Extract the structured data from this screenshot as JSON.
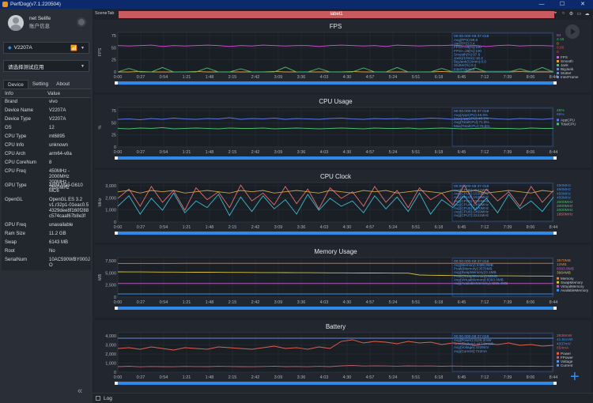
{
  "window": {
    "title": "PerfDog(v7.1.220504)",
    "controls": [
      "—",
      "☐",
      "✕"
    ]
  },
  "user": {
    "name": "net Selife",
    "account_label": "账户信息"
  },
  "device": {
    "name": "V2207A"
  },
  "app_select": {
    "placeholder": "请选择测试应用"
  },
  "tabs": [
    "Device",
    "Setting",
    "About"
  ],
  "info_table": {
    "headers": [
      "Info",
      "Value"
    ],
    "rows": [
      {
        "key": "Brand",
        "lines": [
          "vivo"
        ]
      },
      {
        "key": "Device Name",
        "lines": [
          "V2207A"
        ]
      },
      {
        "key": "Device Type",
        "lines": [
          "V2207A"
        ]
      },
      {
        "key": "OS",
        "lines": [
          "12"
        ]
      },
      {
        "key": "CPU Type",
        "lines": [
          "mt6895"
        ]
      },
      {
        "key": "CPU Info",
        "lines": [
          "unknown"
        ]
      },
      {
        "key": "CPU Arch",
        "lines": [
          "arm64-v8a"
        ]
      },
      {
        "key": "CPU CoreNum",
        "lines": [
          "8"
        ]
      },
      {
        "key": "CPU Freq",
        "lines": [
          "450MHz - 2000MHz",
          "200MHz - 2850MHz"
        ]
      },
      {
        "key": "GPU Type",
        "lines": [
          "ARM Mali-G610",
          "MC6"
        ]
      },
      {
        "key": "OpenGL",
        "lines": [
          "OpenGL ES 3.2",
          "v1.r32p1-01eac0.5",
          "4329dee8f160f288",
          "c574caaf67b8e3f"
        ]
      },
      {
        "key": "GPU Freq",
        "lines": [
          "unavailable"
        ]
      },
      {
        "key": "Ram Size",
        "lines": [
          "11.2 GB"
        ]
      },
      {
        "key": "Swap",
        "lines": [
          "6143 MB"
        ]
      },
      {
        "key": "Root",
        "lines": [
          "No"
        ]
      },
      {
        "key": "SerialNum",
        "lines": [
          "10AC590WBY000J",
          "O"
        ]
      }
    ]
  },
  "scene": {
    "tab_label": "SceneTab",
    "label": "label1"
  },
  "log": {
    "label": "Log"
  },
  "colors": {
    "accent": "#3a8ee6",
    "label_bar": "#c95a60",
    "fps": "#e052e0",
    "cpu_total": "#5a78e8",
    "cpu_app": "#48c070"
  },
  "time_ticks": [
    "0:00",
    "0:27",
    "0:54",
    "1:21",
    "1:48",
    "2:15",
    "2:42",
    "3:09",
    "3:36",
    "4:03",
    "4:30",
    "4:57",
    "5:24",
    "5:51",
    "6:18",
    "6:45",
    "7:12",
    "7:39",
    "8:06",
    "8:44"
  ],
  "chart_data": [
    {
      "type": "line",
      "title": "FPS",
      "ylabel": "FPS",
      "ylim": [
        0,
        90
      ],
      "yticks": [
        "75",
        "50",
        "25",
        "0"
      ],
      "series": [
        {
          "name": "FPS",
          "color": "#e052e0",
          "values": [
            60,
            59,
            60,
            61,
            58,
            60,
            59,
            60,
            61,
            60,
            58,
            60,
            59,
            61,
            60,
            59,
            60,
            60,
            58,
            60,
            61,
            60,
            59,
            60,
            58,
            61,
            60,
            59,
            60,
            60,
            61,
            59,
            60,
            58,
            60,
            61,
            59,
            60,
            60,
            59
          ]
        },
        {
          "name": "Jank",
          "color": "#e0a040",
          "values": [
            0,
            0,
            1,
            0,
            0,
            0,
            0,
            1,
            0,
            0,
            0,
            0,
            0,
            0,
            1,
            0,
            0,
            0,
            0,
            0,
            0,
            1,
            0,
            0,
            0,
            0,
            0,
            0,
            0,
            1,
            0,
            0,
            0,
            0,
            0,
            0,
            1,
            0,
            0,
            0
          ]
        },
        {
          "name": "Stutter",
          "color": "#48c070",
          "values": [
            0,
            8,
            0,
            0,
            10,
            0,
            0,
            0,
            9,
            0,
            0,
            7,
            0,
            0,
            0,
            11,
            0,
            0,
            8,
            0,
            0,
            0,
            9,
            0,
            0,
            10,
            0,
            0,
            0,
            8,
            0,
            0,
            9,
            0,
            0,
            0,
            7,
            0,
            10,
            0
          ]
        }
      ],
      "legend": [
        "FPS",
        "Smooth",
        "Jank",
        "BigJank",
        "Stutter",
        "InterFrame"
      ],
      "legend_values": [
        {
          "text": "84",
          "color": "#e052e0"
        },
        {
          "text": "2.16",
          "color": "#48c070"
        },
        {
          "text": "0",
          "color": "#e0a040"
        },
        {
          "text": "0.00",
          "color": "#e05050"
        },
        {
          "text": "0",
          "color": "#e05050"
        }
      ],
      "stats_header": "00:00.000-08:37.018",
      "stats": [
        "Avg(FPS):59.8",
        "Var(FPS):3.4",
        "FPS>=18[%]:100",
        "FPS>=25[%]:100",
        "Smooth(%):97.8",
        "Jank(/10min):16.2",
        "BigJank(/10min):0.0",
        "Stutter(%):0.2",
        "InterFrame:3"
      ]
    },
    {
      "type": "line",
      "title": "CPU Usage",
      "ylabel": "%",
      "ylim": [
        0,
        100
      ],
      "yticks": [
        "75",
        "50",
        "25",
        "0"
      ],
      "series": [
        {
          "name": "TotalCPU",
          "color": "#5a78e8",
          "values": [
            70,
            71,
            69,
            72,
            70,
            73,
            71,
            70,
            72,
            71,
            74,
            70,
            72,
            71,
            73,
            70,
            72,
            71,
            70,
            72,
            73,
            71,
            70,
            72,
            71,
            72,
            70,
            71,
            73,
            72,
            70,
            71,
            72,
            73,
            71,
            70,
            72,
            71,
            70,
            72
          ]
        },
        {
          "name": "AppCPU",
          "color": "#48c070",
          "values": [
            47,
            46,
            48,
            47,
            49,
            46,
            47,
            48,
            47,
            46,
            48,
            47,
            47,
            48,
            46,
            47,
            48,
            47,
            46,
            47,
            48,
            47,
            46,
            48,
            47,
            47,
            48,
            46,
            47,
            48,
            47,
            46,
            47,
            48,
            47,
            47,
            46,
            48,
            47,
            47
          ]
        }
      ],
      "legend": [
        "AppCPU",
        "TotalCPU"
      ],
      "legend_values": [
        {
          "text": "45%",
          "color": "#48c070"
        },
        {
          "text": "69%",
          "color": "#5a78e8"
        }
      ],
      "stats_header": "00:00.000-08:37.018",
      "stats": [
        "Avg(AppCPU):46.9%",
        "Max(AppCPU):48.1%",
        "Avg(TotalCPU):71.5%",
        "Max(TotalCPU):76.5%"
      ]
    },
    {
      "type": "line",
      "title": "CPU Clock",
      "ylabel": "MHz",
      "ylim": [
        0,
        3000
      ],
      "yticks": [
        "3,000",
        "2,000",
        "1,000",
        "0"
      ],
      "series": [
        {
          "name": "CPU0",
          "color": "#e07070",
          "values": [
            1800,
            2500,
            1200,
            2700,
            1500,
            2400,
            900,
            2600,
            1700,
            2300,
            1100,
            2800,
            1600,
            2200,
            1300,
            2700,
            1400,
            2500,
            1000,
            2600,
            1800,
            2300,
            1200,
            2700,
            1500,
            2400,
            1100,
            2600,
            1700,
            2200,
            1300,
            2800,
            1400,
            2500,
            1600,
            2300,
            1200,
            2700,
            1500,
            2400
          ]
        },
        {
          "name": "CPU4",
          "color": "#3fb8d0",
          "values": [
            1200,
            2000,
            600,
            1800,
            900,
            2200,
            700,
            1600,
            1100,
            2100,
            500,
            1900,
            800,
            2000,
            1000,
            1700,
            600,
            2100,
            900,
            1800,
            1200,
            1600,
            700,
            2000,
            1000,
            1900,
            800,
            2200,
            600,
            1700,
            1100,
            2000,
            900,
            1800,
            700,
            2100,
            1000,
            1600,
            800,
            1900
          ]
        },
        {
          "name": "CPU7",
          "color": "#d0a040",
          "values": [
            2300,
            2400,
            2200,
            2400,
            2300,
            2400,
            2200,
            2300,
            2400,
            2300,
            2200,
            2400,
            2300,
            2400,
            2200,
            2300,
            2400,
            2300,
            2200,
            2400,
            2300,
            2200,
            2400,
            2300,
            2400,
            2200,
            2300,
            2400,
            2300,
            2200,
            2400,
            2300,
            2400,
            2200,
            2300,
            2400,
            2300,
            2200,
            2400,
            2300
          ]
        }
      ],
      "legend_values": [
        {
          "text": "450MHz",
          "color": "#3a8ee6"
        },
        {
          "text": "450MHz",
          "color": "#3a8ee6"
        },
        {
          "text": "450MHz",
          "color": "#3a8ee6"
        },
        {
          "text": "450MHz",
          "color": "#3a8ee6"
        },
        {
          "text": "2000MHz",
          "color": "#48c070"
        },
        {
          "text": "2000MHz",
          "color": "#48c070"
        },
        {
          "text": "2000MHz",
          "color": "#48c070"
        },
        {
          "text": "1850MHz",
          "color": "#e07070"
        }
      ],
      "stats_header": "00:00.000-08:37.018",
      "stats": [
        "Avg(CPU0):1541MHz",
        "Avg(CPU1):1539MHz",
        "Avg(CPU2):1539MHz",
        "Avg(CPU3):1540MHz",
        "Avg(CPU4):1469MHz",
        "Avg(CPU5):1470MHz",
        "Avg(CPU6):1469MHz",
        "Avg(CPU7):2241MHz"
      ]
    },
    {
      "type": "line",
      "title": "Memory Usage",
      "ylabel": "MB",
      "ylim": [
        0,
        7500
      ],
      "yticks": [
        "7,500",
        "5,000",
        "2,500",
        "0"
      ],
      "series": [
        {
          "name": "Memory",
          "color": "#e08040",
          "values": [
            6400,
            6400,
            6400,
            6410,
            6410,
            6410,
            6420,
            6420,
            6420,
            6420,
            6420,
            6420,
            6420,
            6420,
            6420,
            6420,
            6420,
            6420,
            6420,
            6420,
            6420,
            6420,
            6420,
            6420,
            6420,
            6420,
            6420,
            6420,
            6420,
            6420,
            6420,
            6420,
            6420,
            6420,
            6420,
            6420,
            6420,
            6420,
            6420,
            6420
          ]
        },
        {
          "name": "SwapMemory",
          "color": "#d4c040",
          "values": [
            4800,
            4790,
            4780,
            4770,
            4760,
            4750,
            4740,
            4730,
            4720,
            4710,
            4700,
            4690,
            4680,
            4670,
            4660,
            4650,
            4640,
            4630,
            4620,
            4610,
            4600,
            4590,
            4580,
            4570,
            4560,
            4550,
            4540,
            4200,
            4150,
            4120,
            4100,
            4080,
            4060,
            4050,
            4040,
            4030,
            4020,
            4010,
            4000,
            3990
          ]
        },
        {
          "name": "VirtualMemory",
          "color": "#c060c0",
          "values": [
            2600,
            2600,
            2600,
            2600,
            2600,
            2600,
            2600,
            2600,
            2600,
            2600,
            2600,
            2600,
            2600,
            2600,
            2600,
            2600,
            2600,
            2600,
            2600,
            2600,
            2600,
            2600,
            2600,
            2600,
            2600,
            2600,
            2600,
            2600,
            2600,
            2600,
            2600,
            2600,
            2600,
            2600,
            2600,
            2600,
            2600,
            2600,
            2600,
            2600
          ]
        },
        {
          "name": "AvailableMemory",
          "color": "#3a8ee6",
          "values": [
            600,
            600,
            600,
            600,
            600,
            600,
            600,
            600,
            600,
            600,
            600,
            600,
            600,
            600,
            600,
            600,
            600,
            600,
            600,
            600,
            600,
            600,
            600,
            600,
            600,
            600,
            600,
            600,
            600,
            600,
            600,
            600,
            600,
            600,
            600,
            600,
            600,
            600,
            600,
            600
          ]
        }
      ],
      "legend": [
        "Memory",
        "SwapMemory",
        "VirtualMemory",
        "AvailableMemory"
      ],
      "legend_values": [
        {
          "text": "3570MB",
          "color": "#e08040"
        },
        {
          "text": "12MB",
          "color": "#e08040"
        },
        {
          "text": "8393.8MB",
          "color": "#c060c0"
        },
        {
          "text": "3964MB",
          "color": "#d4c040"
        }
      ],
      "stats_header": "00:00.000-08:37.018",
      "stats": [
        "Avg(Memory):3485.9MB",
        "Peak(Memory):3570MB",
        "Avg(SwapMemory):0.1MB",
        "Peak(SwapMemory):12MB",
        "Avg(VirtualMemory):8393.8MB",
        "Avg(AvailableMemory):4255.4MB"
      ]
    },
    {
      "type": "line",
      "title": "Battery",
      "ylabel": "",
      "ylim": [
        0,
        5000
      ],
      "yticks": [
        "4,000",
        "3,000",
        "2,000",
        "1,000",
        "0"
      ],
      "series": [
        {
          "name": "Power",
          "color": "#e06050",
          "values": [
            3000,
            3100,
            2900,
            3200,
            3000,
            2800,
            3100,
            3000,
            2900,
            3200,
            3100,
            3000,
            2900,
            3100,
            3300,
            3000,
            3100,
            2900,
            3200,
            3000,
            3900,
            4100,
            3700,
            3900,
            3800,
            3600,
            3900,
            3700,
            3800,
            3500,
            3700,
            3600,
            3400,
            3600,
            3500,
            3700,
            3400,
            3500,
            3300,
            3400
          ]
        },
        {
          "name": "Current",
          "color": "#c06070",
          "values": [
            700,
            750,
            680,
            720,
            700,
            690,
            730,
            710,
            700,
            740,
            720,
            700,
            690,
            720,
            760,
            700,
            720,
            690,
            740,
            700,
            800,
            850,
            780,
            810,
            790,
            760,
            800,
            780,
            790,
            750,
            780,
            760,
            740,
            760,
            750,
            770,
            740,
            750,
            730,
            740
          ]
        },
        {
          "name": "Voltage",
          "color": "#6090e0",
          "values": [
            4300,
            4300,
            4300,
            4300,
            4300,
            4300,
            4300,
            4300,
            4300,
            4300,
            4300,
            4300,
            4300,
            4300,
            4300,
            4300,
            4300,
            4300,
            4300,
            4300,
            4300,
            4300,
            4300,
            4300,
            4300,
            4300,
            4300,
            4300,
            4300,
            4300,
            4300,
            4300,
            4300,
            4300,
            4300,
            4300,
            4300,
            4300,
            4300,
            4300
          ]
        }
      ],
      "legend": [
        "Power",
        "FPower",
        "Voltage",
        "Current"
      ],
      "legend_values": [
        {
          "text": "2836mW",
          "color": "#e06050"
        },
        {
          "text": "41.81mW",
          "color": "#3a8ee6"
        },
        {
          "text": "4337mV",
          "color": "#6090e0"
        },
        {
          "text": "654mA",
          "color": "#c06070"
        }
      ],
      "stats_header": "00:00.000-08:37.018",
      "stats": [
        "Avg(Power):3126.2mW",
        "Sum(Battery):447.8mWh",
        "Avg(Voltage):4329mV",
        "Avg(Current):722mA"
      ]
    }
  ]
}
